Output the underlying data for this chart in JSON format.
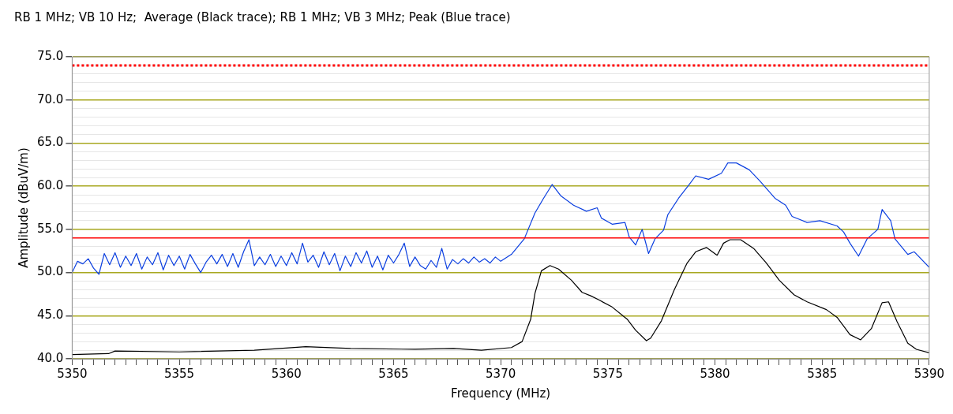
{
  "chart_data": {
    "type": "line",
    "title": "RB 1 MHz; VB 10 Hz;  Average (Black trace); RB 1 MHz; VB 3 MHz; Peak (Blue trace)",
    "xlabel": "Frequency (MHz)",
    "ylabel": "Amplitude (dBuV/m)",
    "xlim": [
      5350,
      5390
    ],
    "ylim": [
      40,
      75
    ],
    "xticks": [
      5350,
      {
        "value": 5350.5,
        "label": null
      },
      {
        "value": 5351,
        "label": null
      },
      {
        "value": 5351.5,
        "label": null
      },
      {
        "value": 5352,
        "label": null
      },
      {
        "value": 5352.5,
        "label": null
      },
      {
        "value": 5353,
        "label": null
      },
      {
        "value": 5353.5,
        "label": null
      },
      {
        "value": 5354,
        "label": null
      },
      {
        "value": 5354.5,
        "label": null
      },
      5355,
      {
        "value": 5355.5,
        "label": null
      },
      {
        "value": 5356,
        "label": null
      },
      {
        "value": 5356.5,
        "label": null
      },
      {
        "value": 5357,
        "label": null
      },
      {
        "value": 5357.5,
        "label": null
      },
      {
        "value": 5358,
        "label": null
      },
      {
        "value": 5358.5,
        "label": null
      },
      {
        "value": 5359,
        "label": null
      },
      {
        "value": 5359.5,
        "label": null
      },
      5360,
      {
        "value": 5360.5,
        "label": null
      },
      {
        "value": 5361,
        "label": null
      },
      {
        "value": 5361.5,
        "label": null
      },
      {
        "value": 5362,
        "label": null
      },
      {
        "value": 5362.5,
        "label": null
      },
      {
        "value": 5363,
        "label": null
      },
      {
        "value": 5363.5,
        "label": null
      },
      {
        "value": 5364,
        "label": null
      },
      {
        "value": 5364.5,
        "label": null
      },
      5365,
      {
        "value": 5365.5,
        "label": null
      },
      {
        "value": 5366,
        "label": null
      },
      {
        "value": 5366.5,
        "label": null
      },
      {
        "value": 5367,
        "label": null
      },
      {
        "value": 5367.5,
        "label": null
      },
      {
        "value": 5368,
        "label": null
      },
      {
        "value": 5368.5,
        "label": null
      },
      {
        "value": 5369,
        "label": null
      },
      {
        "value": 5369.5,
        "label": null
      },
      5370,
      {
        "value": 5370.5,
        "label": null
      },
      {
        "value": 5371,
        "label": null
      },
      {
        "value": 5371.5,
        "label": null
      },
      {
        "value": 5372,
        "label": null
      },
      {
        "value": 5372.5,
        "label": null
      },
      {
        "value": 5373,
        "label": null
      },
      {
        "value": 5373.5,
        "label": null
      },
      {
        "value": 5374,
        "label": null
      },
      {
        "value": 5374.5,
        "label": null
      },
      5375,
      {
        "value": 5375.5,
        "label": null
      },
      {
        "value": 5376,
        "label": null
      },
      {
        "value": 5376.5,
        "label": null
      },
      {
        "value": 5377,
        "label": null
      },
      {
        "value": 5377.5,
        "label": null
      },
      {
        "value": 5378,
        "label": null
      },
      {
        "value": 5378.5,
        "label": null
      },
      {
        "value": 5379,
        "label": null
      },
      {
        "value": 5379.5,
        "label": null
      },
      5380,
      {
        "value": 5380.5,
        "label": null
      },
      {
        "value": 5381,
        "label": null
      },
      {
        "value": 5381.5,
        "label": null
      },
      {
        "value": 5382,
        "label": null
      },
      {
        "value": 5382.5,
        "label": null
      },
      {
        "value": 5383,
        "label": null
      },
      {
        "value": 5383.5,
        "label": null
      },
      {
        "value": 5384,
        "label": null
      },
      {
        "value": 5384.5,
        "label": null
      },
      5385,
      {
        "value": 5385.5,
        "label": null
      },
      {
        "value": 5386,
        "label": null
      },
      {
        "value": 5386.5,
        "label": null
      },
      {
        "value": 5387,
        "label": null
      },
      {
        "value": 5387.5,
        "label": null
      },
      {
        "value": 5388,
        "label": null
      },
      {
        "value": 5388.5,
        "label": null
      },
      {
        "value": 5389,
        "label": null
      },
      {
        "value": 5389.5,
        "label": null
      },
      5390
    ],
    "yticks": [
      {
        "value": 40,
        "label": "40.0"
      },
      {
        "value": 41,
        "label": null
      },
      {
        "value": 42,
        "label": null
      },
      {
        "value": 43,
        "label": null
      },
      {
        "value": 44,
        "label": null
      },
      {
        "value": 45,
        "label": "45.0"
      },
      {
        "value": 46,
        "label": null
      },
      {
        "value": 47,
        "label": null
      },
      {
        "value": 48,
        "label": null
      },
      {
        "value": 49,
        "label": null
      },
      {
        "value": 50,
        "label": "50.0"
      },
      {
        "value": 51,
        "label": null
      },
      {
        "value": 52,
        "label": null
      },
      {
        "value": 53,
        "label": null
      },
      {
        "value": 54,
        "label": null
      },
      {
        "value": 55,
        "label": "55.0"
      },
      {
        "value": 56,
        "label": null
      },
      {
        "value": 57,
        "label": null
      },
      {
        "value": 58,
        "label": null
      },
      {
        "value": 59,
        "label": null
      },
      {
        "value": 60,
        "label": "60.0"
      },
      {
        "value": 61,
        "label": null
      },
      {
        "value": 62,
        "label": null
      },
      {
        "value": 63,
        "label": null
      },
      {
        "value": 64,
        "label": null
      },
      {
        "value": 65,
        "label": "65.0"
      },
      {
        "value": 66,
        "label": null
      },
      {
        "value": 67,
        "label": null
      },
      {
        "value": 68,
        "label": null
      },
      {
        "value": 69,
        "label": null
      },
      {
        "value": 70,
        "label": "70.0"
      },
      {
        "value": 71,
        "label": null
      },
      {
        "value": 72,
        "label": null
      },
      {
        "value": 73,
        "label": null
      },
      {
        "value": 74,
        "label": null
      },
      {
        "value": 75,
        "label": "75.0"
      }
    ],
    "grid": "y",
    "marker": "none",
    "line_style": "solid",
    "ref_lines": [
      {
        "axis": "y",
        "value": 54.0,
        "color": "#ff0000",
        "line_style": "solid"
      },
      {
        "axis": "y",
        "value": 74.0,
        "color": "#ff0000",
        "line_style": "dotted"
      }
    ],
    "series": [
      {
        "color": "#0b3fe0",
        "x": [
          5350,
          5350.25,
          5350.5,
          5350.75,
          5351,
          5351.25,
          5351.5,
          5351.75,
          5352,
          5352.25,
          5352.5,
          5352.75,
          5353,
          5353.25,
          5353.5,
          5353.75,
          5354,
          5354.25,
          5354.5,
          5354.75,
          5355,
          5355.25,
          5355.5,
          5355.75,
          5356,
          5356.25,
          5356.5,
          5356.75,
          5357,
          5357.25,
          5357.5,
          5357.75,
          5358,
          5358.25,
          5358.5,
          5358.75,
          5359,
          5359.25,
          5359.5,
          5359.75,
          5360,
          5360.25,
          5360.5,
          5360.75,
          5361,
          5361.25,
          5361.5,
          5361.75,
          5362,
          5362.25,
          5362.5,
          5362.75,
          5363,
          5363.25,
          5363.5,
          5363.75,
          5364,
          5364.25,
          5364.5,
          5364.75,
          5365,
          5365.25,
          5365.5,
          5365.75,
          5366,
          5366.25,
          5366.5,
          5366.75,
          5367,
          5367.25,
          5367.5,
          5367.75,
          5368,
          5368.25,
          5368.5,
          5368.75,
          5369,
          5369.25,
          5369.5,
          5369.75,
          5370,
          5370.5,
          5371.1,
          5371.6,
          5372.0,
          5372.4,
          5372.8,
          5373.4,
          5374.0,
          5374.5,
          5374.7,
          5375.2,
          5375.8,
          5376.0,
          5376.3,
          5376.6,
          5376.9,
          5377.2,
          5377.6,
          5377.8,
          5378.3,
          5378.8,
          5379.1,
          5379.7,
          5380.3,
          5380.6,
          5381.0,
          5381.6,
          5382.1,
          5382.8,
          5383.3,
          5383.6,
          5384.3,
          5384.9,
          5385.7,
          5386.0,
          5386.3,
          5386.7,
          5387.1,
          5387.6,
          5387.8,
          5388.2,
          5388.4,
          5389.0,
          5389.3,
          5390
        ],
        "values": [
          50.0,
          51.3,
          51.0,
          51.6,
          50.5,
          49.8,
          52.2,
          50.9,
          52.3,
          50.6,
          51.9,
          50.8,
          52.2,
          50.4,
          51.8,
          50.9,
          52.3,
          50.3,
          52.0,
          50.8,
          51.9,
          50.4,
          52.1,
          51.0,
          50.0,
          51.2,
          52.0,
          51.0,
          52.1,
          50.7,
          52.2,
          50.6,
          52.4,
          53.8,
          50.8,
          51.8,
          50.9,
          52.1,
          50.7,
          51.9,
          50.8,
          52.3,
          51.0,
          53.4,
          51.2,
          52.0,
          50.6,
          52.4,
          50.9,
          52.2,
          50.2,
          51.9,
          50.7,
          52.3,
          51.1,
          52.5,
          50.6,
          51.9,
          50.3,
          52.0,
          51.1,
          52.1,
          53.4,
          50.7,
          51.8,
          50.8,
          50.4,
          51.4,
          50.6,
          52.8,
          50.4,
          51.5,
          51.0,
          51.6,
          51.1,
          51.8,
          51.2,
          51.6,
          51.1,
          51.8,
          51.3,
          52.1,
          53.9,
          56.9,
          58.6,
          60.2,
          58.9,
          57.8,
          57.1,
          57.5,
          56.3,
          55.6,
          55.8,
          54.1,
          53.2,
          55.0,
          52.2,
          53.9,
          54.9,
          56.7,
          58.6,
          60.2,
          61.2,
          60.8,
          61.5,
          62.7,
          62.7,
          61.9,
          60.6,
          58.6,
          57.8,
          56.5,
          55.8,
          56.0,
          55.4,
          54.7,
          53.4,
          51.9,
          53.9,
          55.0,
          57.3,
          56.0,
          53.9,
          52.1,
          52.4,
          50.6
        ]
      },
      {
        "color": "#000000",
        "x": [
          5350,
          5351.7,
          5352,
          5355,
          5358.5,
          5360.9,
          5363,
          5366,
          5367.8,
          5369.1,
          5370.5,
          5371.0,
          5371.4,
          5371.6,
          5371.9,
          5372.3,
          5372.7,
          5373.3,
          5373.8,
          5374.2,
          5374.6,
          5375.2,
          5375.9,
          5376.3,
          5376.8,
          5377.0,
          5377.5,
          5378.1,
          5378.7,
          5379.1,
          5379.6,
          5380.1,
          5380.4,
          5380.7,
          5381.2,
          5381.8,
          5382.4,
          5383.0,
          5383.7,
          5384.3,
          5385.2,
          5385.7,
          5386.3,
          5386.8,
          5387.3,
          5387.8,
          5388.1,
          5388.5,
          5389.0,
          5389.4,
          5390
        ],
        "values": [
          40.5,
          40.6,
          40.9,
          40.8,
          41.0,
          41.4,
          41.2,
          41.1,
          41.2,
          41.0,
          41.3,
          42.0,
          44.6,
          47.6,
          50.2,
          50.8,
          50.4,
          49.1,
          47.7,
          47.3,
          46.8,
          46.0,
          44.6,
          43.3,
          42.1,
          42.4,
          44.4,
          48.0,
          51.1,
          52.4,
          52.9,
          52.0,
          53.4,
          53.8,
          53.8,
          52.8,
          51.1,
          49.1,
          47.4,
          46.6,
          45.7,
          44.8,
          42.8,
          42.2,
          43.5,
          46.5,
          46.6,
          44.3,
          41.8,
          41.1,
          40.7
        ]
      }
    ]
  }
}
